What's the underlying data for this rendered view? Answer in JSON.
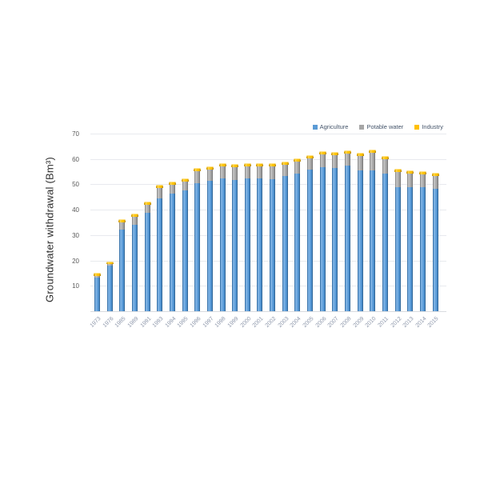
{
  "chart_data": {
    "type": "bar",
    "stacked": true,
    "title": "",
    "xlabel": "",
    "ylabel": "Groundwater withdrawal (Bm³)",
    "ylim": [
      0,
      70
    ],
    "yticks": [
      10,
      20,
      30,
      40,
      50,
      60,
      70
    ],
    "grid": true,
    "legend_position": "top-right",
    "categories": [
      "1973",
      "1976",
      "1985",
      "1989",
      "1991",
      "1993",
      "1994",
      "1995",
      "1996",
      "1997",
      "1998",
      "1999",
      "2000",
      "2001",
      "2002",
      "2003",
      "2004",
      "2005",
      "2006",
      "2007",
      "2008",
      "2009",
      "2010",
      "2011",
      "2012",
      "2013",
      "2014",
      "2015"
    ],
    "series": [
      {
        "name": "Agriculture",
        "color": "#5B9BD5",
        "values": [
          13.4,
          17.9,
          32.1,
          34.1,
          38.9,
          44.6,
          46.4,
          47.5,
          50.6,
          51.5,
          52.3,
          51.7,
          52.2,
          52.2,
          52.1,
          53.4,
          54.1,
          55.7,
          56.7,
          56.3,
          57.4,
          55.6,
          55.6,
          54.1,
          49.0,
          48.8,
          48.9,
          48.4
        ]
      },
      {
        "name": "Potable water",
        "color": "#A6A6A6",
        "values": [
          0.5,
          0.6,
          3.0,
          3.0,
          2.9,
          3.9,
          3.5,
          3.7,
          4.6,
          4.2,
          4.8,
          5.0,
          4.8,
          4.8,
          5.1,
          4.4,
          4.9,
          4.5,
          5.2,
          5.2,
          4.8,
          5.7,
          6.9,
          5.9,
          5.8,
          5.5,
          4.9,
          5.0
        ]
      },
      {
        "name": "Industry",
        "color": "#FFC000",
        "values": [
          1.1,
          1.0,
          1.3,
          1.3,
          1.3,
          1.3,
          1.3,
          1.3,
          1.3,
          1.3,
          1.3,
          1.3,
          1.3,
          1.3,
          1.3,
          1.3,
          1.3,
          1.3,
          1.3,
          1.3,
          1.3,
          1.3,
          1.3,
          1.3,
          1.3,
          1.3,
          1.3,
          1.3
        ]
      }
    ]
  }
}
